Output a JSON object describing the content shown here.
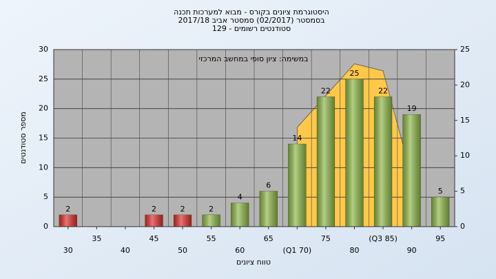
{
  "chart_data": {
    "type": "bar",
    "title": "היסטוגרמת ציונים בקורס - מבוא למערכות תכנה",
    "subtitle": "בסמסטר (02/2017) סמסטר אביב 2017/18",
    "subtitle2": "סטודנטים רשומים - 129",
    "annotation": "במשימה: ציון סופי במחשב המרכזי",
    "y_label": "מספר סטודנטים",
    "x_label": "טווח ציונים",
    "categories": [
      "30",
      "35",
      "40",
      "45",
      "50",
      "55",
      "60",
      "65",
      "(Q1 70)",
      "75",
      "80",
      "(Q3 85)",
      "90",
      "95"
    ],
    "series": [
      {
        "type": "bar",
        "values": [
          2,
          0,
          0,
          2,
          2,
          2,
          4,
          6,
          14,
          22,
          25,
          22,
          19,
          5
        ],
        "colors": [
          "#dd2a2a",
          "#dd2a2a",
          "#dd2a2a",
          "#dd2a2a",
          "#dd2a2a",
          "#8bb545",
          "#8bb545",
          "#8bb545",
          "#8bb545",
          "#8bb545",
          "#8bb545",
          "#8bb545",
          "#8bb545",
          "#8bb545"
        ]
      },
      {
        "type": "area",
        "axis": "y2",
        "color": "#ffc84a",
        "values": [
          null,
          null,
          null,
          null,
          null,
          null,
          null,
          null,
          14,
          18.5,
          23,
          22,
          7,
          null
        ]
      }
    ],
    "ylim": [
      0,
      30
    ],
    "yticks": [
      0,
      5,
      10,
      15,
      20,
      25,
      30
    ],
    "y2lim": [
      0,
      25
    ],
    "y2ticks": [
      0,
      5,
      10,
      15,
      20,
      25
    ],
    "grid": true
  }
}
